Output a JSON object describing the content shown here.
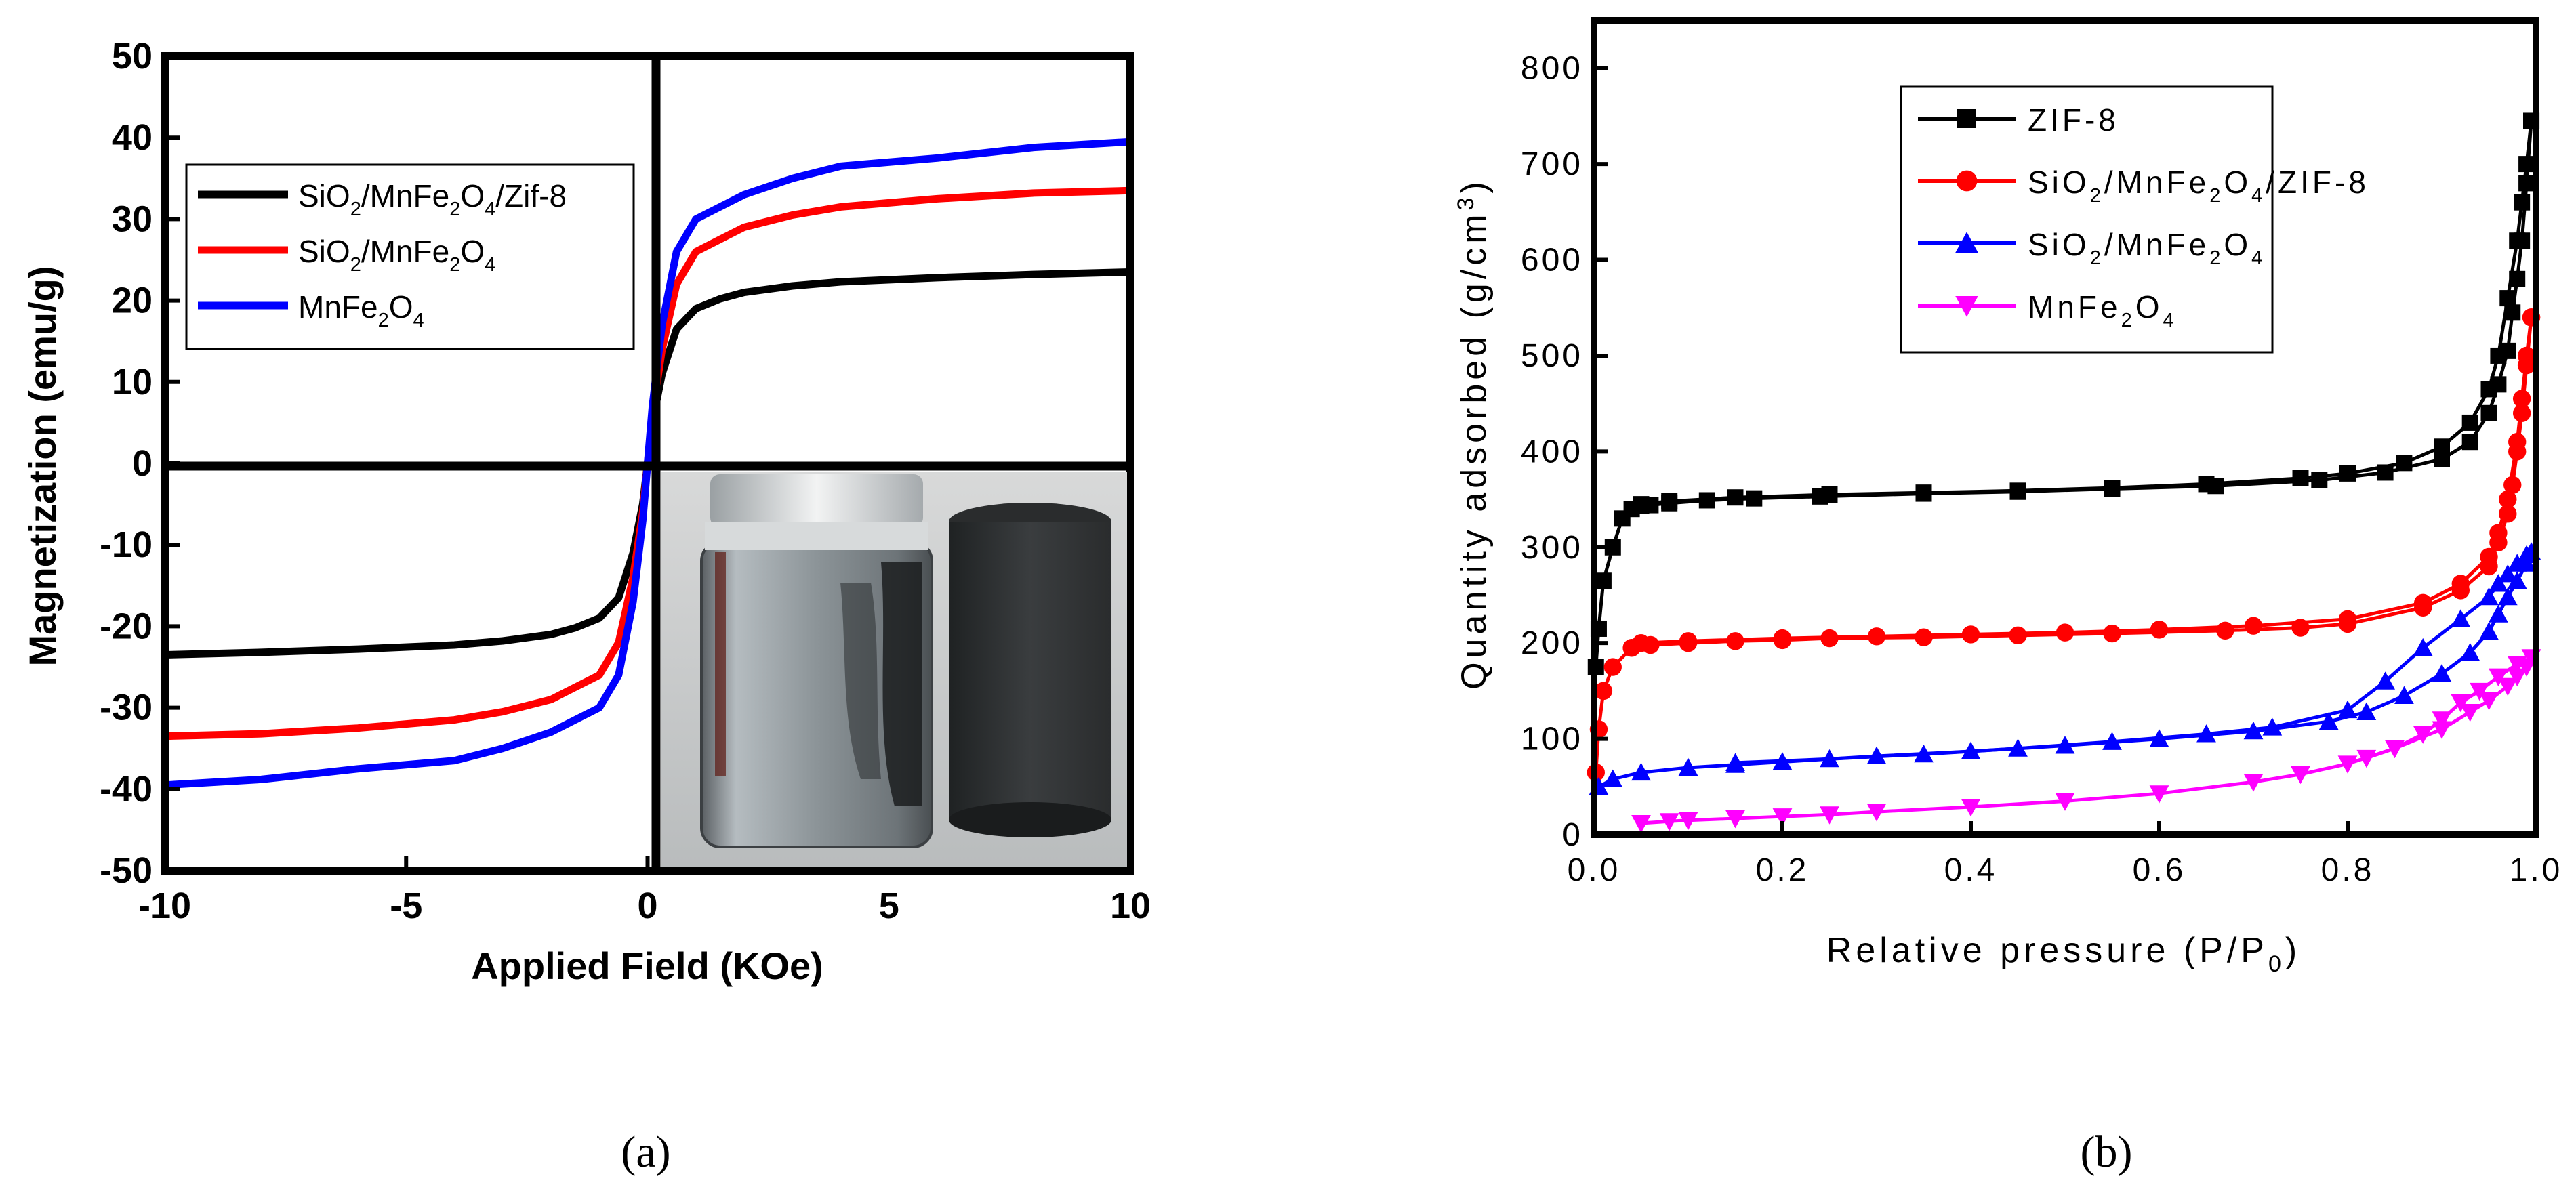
{
  "chart_data": [
    {
      "type": "line",
      "panel_label": "(a)",
      "xlabel": "Applied Field (KOe)",
      "ylabel": "Magnetization (emu/g)",
      "xlim": [
        -10,
        10
      ],
      "ylim": [
        -50,
        50
      ],
      "xticks": [
        "-10",
        "-5",
        "0",
        "5",
        "10"
      ],
      "yticks": [
        "-50",
        "-40",
        "-30",
        "-20",
        "-10",
        "0",
        "10",
        "20",
        "30",
        "40",
        "50"
      ],
      "legend_position": "top-left",
      "inset": "photo of vial with magnetic particles attracted to a magnet",
      "series": [
        {
          "name": "SiO2/MnFe2O4/Zif-8",
          "color": "#000000",
          "x": [
            -10,
            -8,
            -6,
            -4,
            -3,
            -2,
            -1.5,
            -1,
            -0.6,
            -0.3,
            -0.1,
            0,
            0.1,
            0.3,
            0.6,
            1,
            1.5,
            2,
            3,
            4,
            6,
            8,
            10
          ],
          "y": [
            -23.5,
            -23.2,
            -22.8,
            -22.3,
            -21.8,
            -21,
            -20.2,
            -19,
            -16.5,
            -11,
            -5,
            0,
            5,
            11,
            16.5,
            19,
            20.2,
            21,
            21.8,
            22.3,
            22.8,
            23.2,
            23.5
          ]
        },
        {
          "name": "SiO2/MnFe2O4",
          "color": "#ff0000",
          "x": [
            -10,
            -8,
            -6,
            -4,
            -3,
            -2,
            -1.5,
            -1,
            -0.6,
            -0.3,
            -0.1,
            0,
            0.1,
            0.3,
            0.6,
            1,
            1.5,
            2,
            3,
            4,
            6,
            8,
            10
          ],
          "y": [
            -33.5,
            -33.2,
            -32.5,
            -31.5,
            -30.5,
            -29,
            -27.5,
            -26,
            -22,
            -14,
            -6,
            0,
            6,
            14,
            22,
            26,
            27.5,
            29,
            30.5,
            31.5,
            32.5,
            33.2,
            33.5
          ]
        },
        {
          "name": "MnFe2O4",
          "color": "#0000ff",
          "x": [
            -10,
            -8,
            -6,
            -4,
            -3,
            -2,
            -1.5,
            -1,
            -0.6,
            -0.3,
            -0.1,
            0,
            0.1,
            0.3,
            0.6,
            1,
            1.5,
            2,
            3,
            4,
            6,
            8,
            10
          ],
          "y": [
            -39.5,
            -38.8,
            -37.5,
            -36.5,
            -35,
            -33,
            -31.5,
            -30,
            -26,
            -17,
            -7,
            0,
            7,
            17,
            26,
            30,
            31.5,
            33,
            35,
            36.5,
            37.5,
            38.8,
            39.5
          ]
        }
      ],
      "legend": [
        {
          "base": "SiO",
          "sub1": "2",
          "mid1": "/MnFe",
          "sub2": "2",
          "mid2": "O",
          "sub3": "4",
          "tail": "/Zif-8",
          "color": "#000000"
        },
        {
          "base": "SiO",
          "sub1": "2",
          "mid1": "/MnFe",
          "sub2": "2",
          "mid2": "O",
          "sub3": "4",
          "tail": "",
          "color": "#ff0000"
        },
        {
          "base": "MnFe",
          "sub1": "2",
          "mid1": "O",
          "sub2": "4",
          "mid2": "",
          "sub3": "",
          "tail": "",
          "color": "#0000ff"
        }
      ]
    },
    {
      "type": "line",
      "panel_label": "(b)",
      "xlabel_main": "Relative pressure (P/P",
      "xlabel_sub": "0",
      "xlabel_tail": ")",
      "ylabel_main": "Quantity adsorbed (g/cm",
      "ylabel_sup": "3",
      "ylabel_tail": ")",
      "xlim": [
        0,
        1
      ],
      "ylim": [
        0,
        850
      ],
      "xticks": [
        "0.0",
        "0.2",
        "0.4",
        "0.6",
        "0.8",
        "1.0"
      ],
      "yticks": [
        "0",
        "100",
        "200",
        "300",
        "400",
        "500",
        "600",
        "700",
        "800"
      ],
      "legend_position": "top-right",
      "series": [
        {
          "name": "ZIF-8",
          "color": "#000000",
          "marker": "square",
          "adsorption": {
            "x": [
              0.002,
              0.005,
              0.01,
              0.02,
              0.03,
              0.04,
              0.05,
              0.06,
              0.08,
              0.12,
              0.17,
              0.24,
              0.35,
              0.45,
              0.55,
              0.66,
              0.77,
              0.84,
              0.9,
              0.93,
              0.95,
              0.96,
              0.97,
              0.975,
              0.98,
              0.985,
              0.99,
              0.995
            ],
            "y": [
              175,
              215,
              265,
              300,
              330,
              340,
              343,
              344,
              346,
              349,
              351,
              353,
              356,
              358,
              361,
              364,
              370,
              378,
              392,
              410,
              440,
              470,
              505,
              545,
              580,
              620,
              680,
              745
            ]
          },
          "desorption": {
            "x": [
              0.995,
              0.99,
              0.985,
              0.98,
              0.97,
              0.96,
              0.95,
              0.93,
              0.9,
              0.86,
              0.8,
              0.75,
              0.65,
              0.55,
              0.45,
              0.35,
              0.25,
              0.15,
              0.08,
              0.05
            ],
            "y": [
              745,
              700,
              660,
              620,
              560,
              500,
              465,
              430,
              405,
              388,
              377,
              372,
              366,
              362,
              359,
              357,
              355,
              352,
              348,
              345
            ]
          }
        },
        {
          "name": "SiO2/MnFe2O4/ZIF-8",
          "color": "#ff0000",
          "marker": "circle",
          "adsorption": {
            "x": [
              0.002,
              0.005,
              0.01,
              0.02,
              0.04,
              0.06,
              0.1,
              0.15,
              0.2,
              0.25,
              0.35,
              0.45,
              0.55,
              0.67,
              0.75,
              0.8,
              0.88,
              0.92,
              0.95,
              0.96,
              0.97,
              0.975,
              0.98,
              0.985,
              0.99,
              0.995
            ],
            "y": [
              65,
              110,
              150,
              175,
              195,
              198,
              200,
              202,
              203,
              205,
              206,
              208,
              210,
              213,
              216,
              220,
              237,
              255,
              280,
              305,
              335,
              365,
              400,
              440,
              490,
              540
            ]
          },
          "desorption": {
            "x": [
              0.995,
              0.99,
              0.985,
              0.98,
              0.97,
              0.96,
              0.95,
              0.92,
              0.88,
              0.8,
              0.7,
              0.6,
              0.5,
              0.4,
              0.3,
              0.2,
              0.1,
              0.05
            ],
            "y": [
              540,
              500,
              455,
              410,
              350,
              315,
              290,
              262,
              242,
              225,
              218,
              214,
              211,
              209,
              207,
              205,
              202,
              200
            ]
          }
        },
        {
          "name": "SiO2/MnFe2O4",
          "color": "#0000ff",
          "marker": "triangle-up",
          "adsorption": {
            "x": [
              0.005,
              0.02,
              0.05,
              0.1,
              0.15,
              0.2,
              0.3,
              0.4,
              0.5,
              0.6,
              0.7,
              0.78,
              0.82,
              0.86,
              0.9,
              0.93,
              0.95,
              0.96,
              0.97,
              0.98,
              0.99,
              0.995
            ],
            "y": [
              50,
              58,
              65,
              70,
              73,
              76,
              82,
              87,
              93,
              100,
              108,
              118,
              128,
              145,
              168,
              190,
              212,
              230,
              248,
              265,
              283,
              295
            ]
          },
          "desorption": {
            "x": [
              0.995,
              0.99,
              0.98,
              0.97,
              0.96,
              0.95,
              0.92,
              0.88,
              0.84,
              0.8,
              0.72,
              0.65,
              0.55,
              0.45,
              0.35,
              0.25,
              0.15
            ],
            "y": [
              295,
              292,
              283,
              272,
              262,
              248,
              225,
              195,
              160,
              130,
              112,
              105,
              97,
              90,
              84,
              79,
              75
            ]
          }
        },
        {
          "name": "MnFe2O4",
          "color": "#ff00ff",
          "marker": "triangle-down",
          "adsorption": {
            "x": [
              0.05,
              0.08,
              0.1,
              0.15,
              0.2,
              0.25,
              0.3,
              0.4,
              0.5,
              0.6,
              0.7,
              0.75,
              0.8,
              0.85,
              0.9,
              0.93,
              0.95,
              0.97,
              0.98,
              0.99,
              0.995
            ],
            "y": [
              12,
              14,
              15,
              17,
              19,
              21,
              24,
              29,
              35,
              43,
              55,
              63,
              74,
              90,
              110,
              128,
              140,
              155,
              165,
              175,
              185
            ]
          },
          "desorption": {
            "x": [
              0.995,
              0.98,
              0.96,
              0.94,
              0.92,
              0.9,
              0.88,
              0.85,
              0.82
            ],
            "y": [
              185,
              178,
              165,
              150,
              138,
              120,
              105,
              90,
              80
            ]
          }
        }
      ],
      "legend": [
        {
          "base": "ZIF-8",
          "sub1": "",
          "mid1": "",
          "sub2": "",
          "mid2": "",
          "sub3": "",
          "tail": "",
          "color": "#000000",
          "marker": "square"
        },
        {
          "base": "SiO",
          "sub1": "2",
          "mid1": "/MnFe",
          "sub2": "2",
          "mid2": "O",
          "sub3": "4",
          "tail": "/ZIF-8",
          "color": "#ff0000",
          "marker": "circle"
        },
        {
          "base": "SiO",
          "sub1": "2",
          "mid1": "/MnFe",
          "sub2": "2",
          "mid2": "O",
          "sub3": "4",
          "tail": "",
          "color": "#0000ff",
          "marker": "triangle-up"
        },
        {
          "base": "MnFe",
          "sub1": "2",
          "mid1": "O",
          "sub2": "4",
          "mid2": "",
          "sub3": "",
          "tail": "",
          "color": "#ff00ff",
          "marker": "triangle-down"
        }
      ]
    }
  ]
}
